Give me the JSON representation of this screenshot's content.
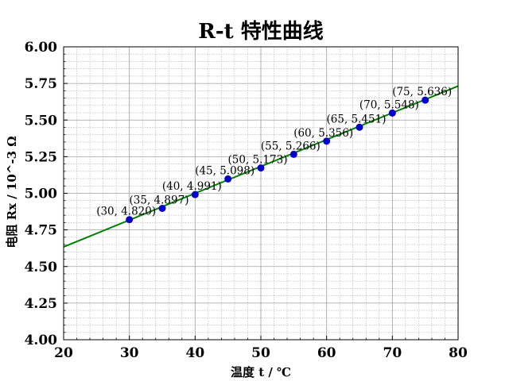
{
  "chart_data": {
    "type": "scatter",
    "title": "R-t 特性曲线",
    "xlabel": "温度 t / ℃",
    "ylabel": "电阻 Rx / 10^-3 Ω",
    "xlim": [
      20,
      80
    ],
    "ylim": [
      4.0,
      6.0
    ],
    "xticks": [
      "20",
      "30",
      "40",
      "50",
      "60",
      "70",
      "80"
    ],
    "yticks": [
      "4.00",
      "4.25",
      "4.50",
      "4.75",
      "5.00",
      "5.25",
      "5.50",
      "5.75",
      "6.00"
    ],
    "grid": true,
    "series": [
      {
        "x": [
          30,
          35,
          40,
          45,
          50,
          55,
          60,
          65,
          70,
          75
        ],
        "y": [
          4.82,
          4.897,
          4.991,
          5.098,
          5.173,
          5.266,
          5.356,
          5.451,
          5.548,
          5.636
        ],
        "labels": [
          "(30, 4.820)",
          "(35, 4.897)",
          "(40, 4.991)",
          "(45, 5.098)",
          "(50, 5.173)",
          "(55, 5.266)",
          "(60, 5.356)",
          "(65, 5.451)",
          "(70, 5.548)",
          "(75, 5.636)"
        ],
        "color": "#0000cc"
      }
    ],
    "fit_line": {
      "x": [
        20,
        80
      ],
      "y": [
        4.634,
        5.732
      ],
      "color": "#008000"
    }
  }
}
